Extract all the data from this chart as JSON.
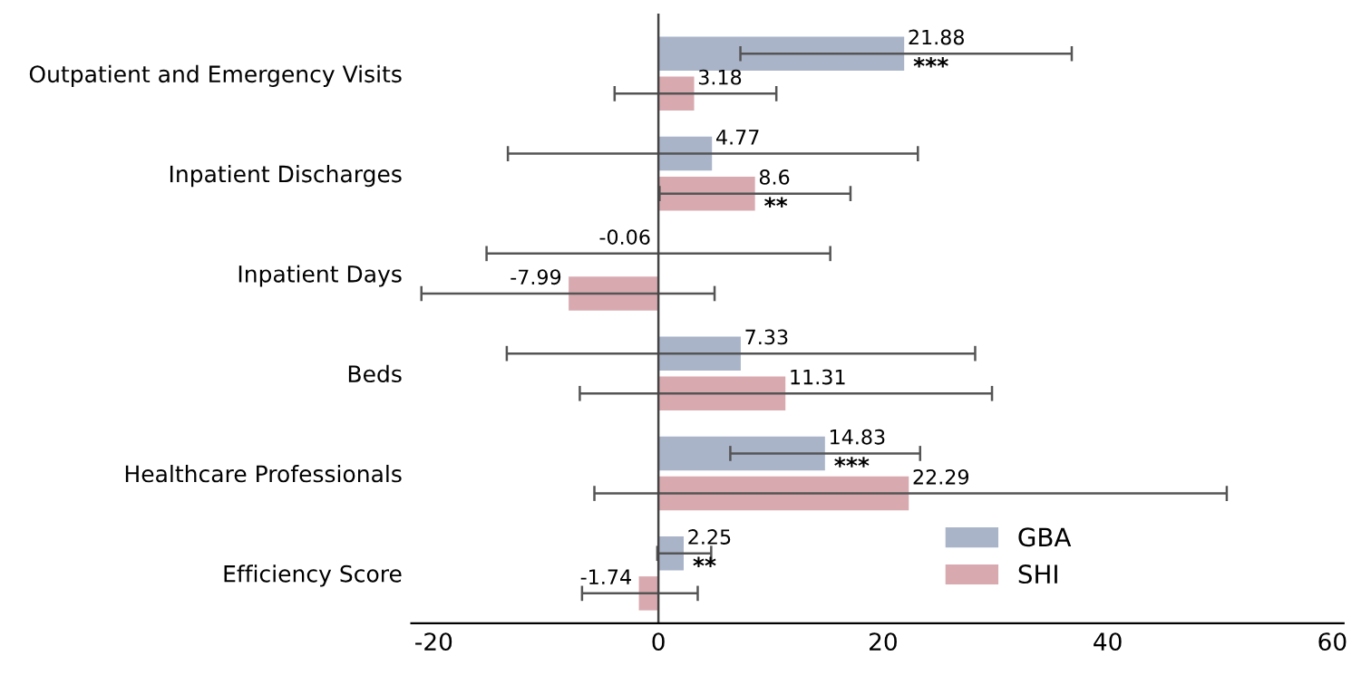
{
  "chart_data": {
    "type": "bar",
    "orientation": "horizontal",
    "categories": [
      "Outpatient and Emergency Visits",
      "Inpatient Discharges",
      "Inpatient Days",
      "Beds",
      "Healthcare Professionals",
      "Efficiency Score"
    ],
    "series": [
      {
        "name": "GBA",
        "color": "#a9b4c9",
        "values": [
          21.88,
          4.77,
          -0.06,
          7.33,
          14.83,
          2.25
        ],
        "errors": [
          [
            7.3,
            36.8
          ],
          [
            -13.4,
            23.1
          ],
          [
            -15.3,
            15.3
          ],
          [
            -13.5,
            28.2
          ],
          [
            6.4,
            23.3
          ],
          [
            -0.1,
            4.7
          ]
        ]
      },
      {
        "name": "SHI",
        "color": "#d8aab0",
        "values": [
          3.18,
          8.6,
          -7.99,
          11.31,
          22.29,
          -1.74
        ],
        "errors": [
          [
            -3.9,
            10.5
          ],
          [
            0.1,
            17.1
          ],
          [
            -21.1,
            5.0
          ],
          [
            -7.0,
            29.7
          ],
          [
            -5.7,
            50.6
          ],
          [
            -6.8,
            3.5
          ]
        ]
      }
    ],
    "data_labels": true,
    "annotations": [
      {
        "text": "***",
        "x": 21.88,
        "y": "Outpatient and Emergency Visits"
      },
      {
        "text": "**",
        "x": 8.6,
        "y": "Inpatient Discharges"
      },
      {
        "text": "***",
        "x": 14.83,
        "y": "Healthcare Professionals"
      },
      {
        "text": "**",
        "x": 2.25,
        "y": "Efficiency Score"
      }
    ],
    "xlim": [
      -22,
      61
    ],
    "xticks": [
      -20,
      0,
      20,
      40,
      60
    ],
    "ref_lines": [
      {
        "axis": "x",
        "value": 0,
        "label": null,
        "color": "#444444"
      }
    ],
    "grid": false,
    "legend": "bottom"
  }
}
